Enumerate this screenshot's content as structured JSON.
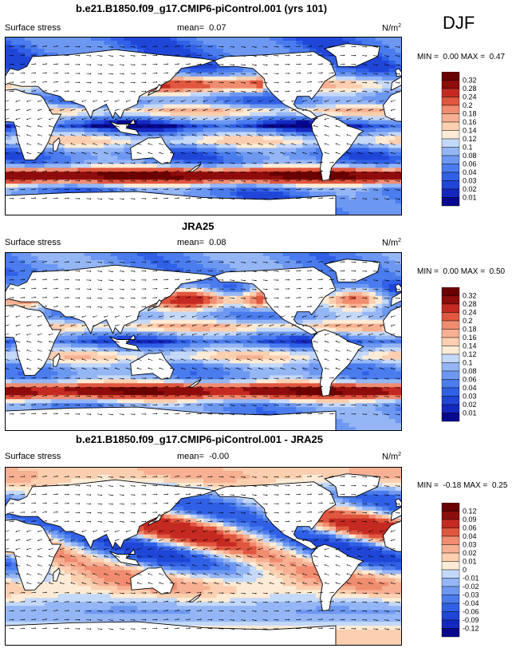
{
  "season": "DJF",
  "units": "N/m",
  "units_exp": "2",
  "panels": [
    {
      "title": "b.e21.B1850.f09_g17.CMIP6-piControl.001 (yrs 101)",
      "variable": "Surface stress",
      "mean_label": "mean=",
      "mean": "0.07",
      "min_label": "MIN =",
      "min": "0.00",
      "max_label": "MAX =",
      "max": "0.47",
      "levels": [
        "0.32",
        "0.28",
        "0.24",
        "0.2",
        "0.18",
        "0.16",
        "0.14",
        "0.12",
        "0.1",
        "0.08",
        "0.06",
        "0.04",
        "0.03",
        "0.02",
        "0.01"
      ]
    },
    {
      "title": "JRA25",
      "variable": "Surface stress",
      "mean_label": "mean=",
      "mean": "0.08",
      "min_label": "MIN =",
      "min": "0.00",
      "max_label": "MAX =",
      "max": "0.50",
      "levels": [
        "0.32",
        "0.28",
        "0.24",
        "0.2",
        "0.18",
        "0.16",
        "0.14",
        "0.12",
        "0.1",
        "0.08",
        "0.06",
        "0.04",
        "0.03",
        "0.02",
        "0.01"
      ]
    },
    {
      "title": "b.e21.B1850.f09_g17.CMIP6-piControl.001 - JRA25",
      "variable": "Surface stress",
      "mean_label": "mean=",
      "mean": "-0.00",
      "min_label": "MIN =",
      "min": "-0.18",
      "max_label": "MAX =",
      "max": "0.25",
      "levels": [
        "0.12",
        "0.09",
        "0.06",
        "0.04",
        "0.03",
        "0.02",
        "0.01",
        "0",
        "-0.01",
        "-0.02",
        "-0.03",
        "-0.04",
        "-0.06",
        "-0.09",
        "-0.12"
      ]
    }
  ],
  "chart_data": [
    {
      "type": "heatmap",
      "title": "b.e21.B1850.f09_g17.CMIP6-piControl.001 (yrs 101)",
      "field": "Surface stress (vectors over magnitude), N/m2",
      "stats": {
        "mean": 0.07,
        "min": 0.0,
        "max": 0.47
      },
      "contour_levels": [
        0.01,
        0.02,
        0.03,
        0.04,
        0.06,
        0.08,
        0.1,
        0.12,
        0.14,
        0.16,
        0.18,
        0.2,
        0.24,
        0.28,
        0.32
      ],
      "colors": [
        "#08088f",
        "#1428c0",
        "#2046d8",
        "#3060e6",
        "#4a7cee",
        "#6d98f2",
        "#95b6f5",
        "#c4d8f8",
        "#fdebd6",
        "#fbcfb0",
        "#f7b092",
        "#f08c70",
        "#e0563e",
        "#c52a22",
        "#8e0c0c",
        "#6a0000"
      ]
    },
    {
      "type": "heatmap",
      "title": "JRA25",
      "field": "Surface stress (vectors over magnitude), N/m2",
      "stats": {
        "mean": 0.08,
        "min": 0.0,
        "max": 0.5
      },
      "contour_levels": [
        0.01,
        0.02,
        0.03,
        0.04,
        0.06,
        0.08,
        0.1,
        0.12,
        0.14,
        0.16,
        0.18,
        0.2,
        0.24,
        0.28,
        0.32
      ],
      "colors": [
        "#08088f",
        "#1428c0",
        "#2046d8",
        "#3060e6",
        "#4a7cee",
        "#6d98f2",
        "#95b6f5",
        "#c4d8f8",
        "#fdebd6",
        "#fbcfb0",
        "#f7b092",
        "#f08c70",
        "#e0563e",
        "#c52a22",
        "#8e0c0c",
        "#6a0000"
      ]
    },
    {
      "type": "heatmap",
      "title": "b.e21.B1850.f09_g17.CMIP6-piControl.001 - JRA25",
      "field": "Surface stress difference (vectors over magnitude), N/m2",
      "stats": {
        "mean": -0.0,
        "min": -0.18,
        "max": 0.25
      },
      "contour_levels": [
        -0.12,
        -0.09,
        -0.06,
        -0.04,
        -0.03,
        -0.02,
        -0.01,
        0,
        0.01,
        0.02,
        0.03,
        0.04,
        0.06,
        0.09,
        0.12
      ],
      "colors": [
        "#08088f",
        "#1428c0",
        "#2046d8",
        "#3060e6",
        "#4a7cee",
        "#6d98f2",
        "#95b6f5",
        "#c4d8f8",
        "#fdebd6",
        "#fbcfb0",
        "#f7b092",
        "#f08c70",
        "#e0563e",
        "#c52a22",
        "#8e0c0c",
        "#6a0000"
      ]
    }
  ]
}
